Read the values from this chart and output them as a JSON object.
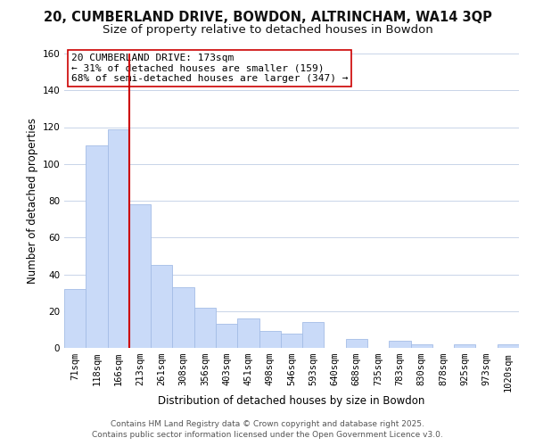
{
  "title": "20, CUMBERLAND DRIVE, BOWDON, ALTRINCHAM, WA14 3QP",
  "subtitle": "Size of property relative to detached houses in Bowdon",
  "xlabel": "Distribution of detached houses by size in Bowdon",
  "ylabel": "Number of detached properties",
  "bar_labels": [
    "71sqm",
    "118sqm",
    "166sqm",
    "213sqm",
    "261sqm",
    "308sqm",
    "356sqm",
    "403sqm",
    "451sqm",
    "498sqm",
    "546sqm",
    "593sqm",
    "640sqm",
    "688sqm",
    "735sqm",
    "783sqm",
    "830sqm",
    "878sqm",
    "925sqm",
    "973sqm",
    "1020sqm"
  ],
  "bar_values": [
    32,
    110,
    119,
    78,
    45,
    33,
    22,
    13,
    16,
    9,
    8,
    14,
    0,
    5,
    0,
    4,
    2,
    0,
    2,
    0,
    2
  ],
  "bar_color": "#c9daf8",
  "bar_edge_color": "#a4bde6",
  "highlight_color": "#cc0000",
  "ylim": [
    0,
    160
  ],
  "yticks": [
    0,
    20,
    40,
    60,
    80,
    100,
    120,
    140,
    160
  ],
  "annotation_title": "20 CUMBERLAND DRIVE: 173sqm",
  "annotation_line1": "← 31% of detached houses are smaller (159)",
  "annotation_line2": "68% of semi-detached houses are larger (347) →",
  "annotation_box_color": "#ffffff",
  "annotation_box_edge": "#cc0000",
  "footer_line1": "Contains HM Land Registry data © Crown copyright and database right 2025.",
  "footer_line2": "Contains public sector information licensed under the Open Government Licence v3.0.",
  "bg_color": "#ffffff",
  "grid_color": "#c8d4e8",
  "title_fontsize": 10.5,
  "subtitle_fontsize": 9.5,
  "axis_label_fontsize": 8.5,
  "tick_fontsize": 7.5,
  "annotation_fontsize": 8,
  "footer_fontsize": 6.5
}
